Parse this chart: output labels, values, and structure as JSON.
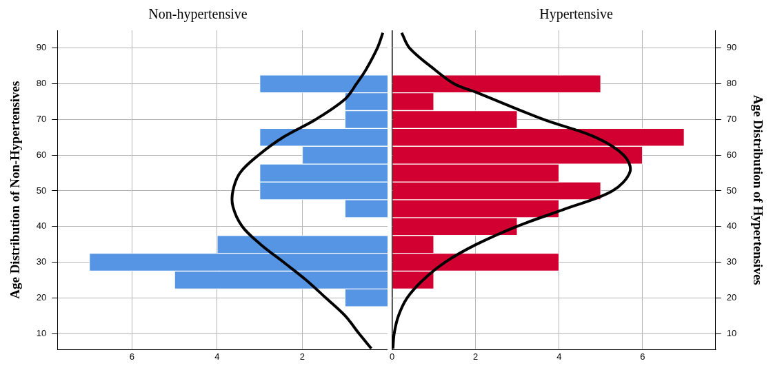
{
  "chart_data": [
    {
      "type": "histogram",
      "orientation": "horizontal",
      "title": "Non-hypertensive",
      "ylabel": "Age Distribution of Non-Hypertensives",
      "bins": [
        17.5,
        22.5,
        27.5,
        32.5,
        37.5,
        42.5,
        47.5,
        52.5,
        57.5,
        62.5,
        67.5,
        72.5,
        77.5,
        82.5
      ],
      "xlim": [
        7.75,
        0
      ],
      "xticks": [
        6,
        4,
        2
      ],
      "ylim": [
        5.5,
        95
      ],
      "yticks": [
        10,
        20,
        30,
        40,
        50,
        60,
        70,
        80,
        90
      ],
      "grid": true,
      "series": [
        {
          "type": "histogram",
          "color": "#5595e3",
          "values": [
            1,
            5,
            7,
            4,
            0,
            1,
            3,
            3,
            2,
            3,
            1,
            1,
            3
          ]
        },
        {
          "type": "line",
          "color": "#000000",
          "marker": "none",
          "x": [
            5.8,
            10,
            14.9,
            20,
            25,
            30,
            35,
            40,
            45.6,
            50,
            55.1,
            60,
            65.1,
            70,
            75.8,
            80,
            83.9,
            90,
            94.3
          ],
          "values": [
            0.38,
            0.67,
            0.99,
            1.45,
            1.91,
            2.44,
            2.98,
            3.41,
            3.63,
            3.63,
            3.46,
            3.03,
            2.44,
            1.69,
            0.99,
            0.73,
            0.51,
            0.24,
            0.11
          ]
        }
      ]
    },
    {
      "type": "histogram",
      "orientation": "horizontal",
      "title": "Hypertensive",
      "ylabel": "Age Distribution of Hypertensives",
      "bins": [
        17.5,
        22.5,
        27.5,
        32.5,
        37.5,
        42.5,
        47.5,
        52.5,
        57.5,
        62.5,
        67.5,
        72.5,
        77.5,
        82.5
      ],
      "xlim": [
        0,
        7.75
      ],
      "xticks": [
        0,
        2,
        4,
        6
      ],
      "ylim": [
        5.5,
        95
      ],
      "yticks": [
        10,
        20,
        30,
        40,
        50,
        60,
        70,
        80,
        90
      ],
      "grid": true,
      "series": [
        {
          "type": "histogram",
          "color": "#d20030",
          "values": [
            0,
            1,
            4,
            1,
            3,
            4,
            5,
            4,
            6,
            7,
            3,
            1,
            5
          ]
        },
        {
          "type": "line",
          "color": "#000000",
          "marker": "none",
          "x": [
            5.8,
            10,
            14.9,
            20,
            25,
            30,
            35,
            40,
            45,
            50,
            55.4,
            60,
            65.1,
            70,
            77.6,
            80,
            83.9,
            90,
            94.3
          ],
          "values": [
            0.02,
            0.05,
            0.15,
            0.36,
            0.74,
            1.27,
            2.02,
            2.98,
            4.16,
            5.28,
            5.7,
            5.55,
            4.86,
            3.63,
            2.02,
            1.49,
            1.03,
            0.42,
            0.23
          ]
        }
      ]
    }
  ]
}
